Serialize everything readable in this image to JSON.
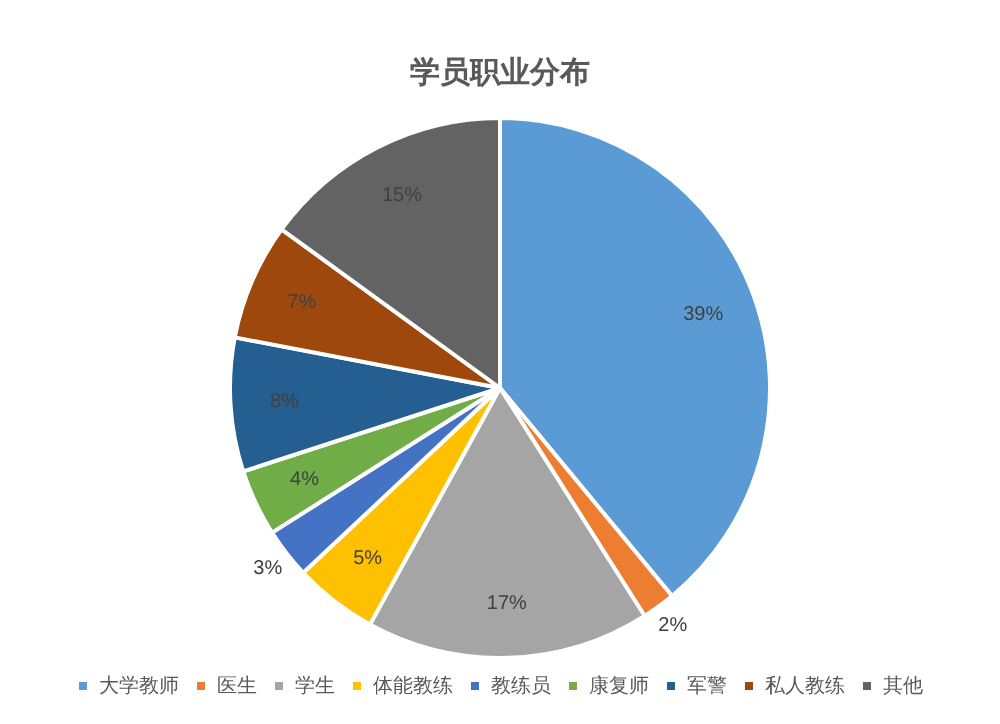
{
  "chart_data": {
    "type": "pie",
    "title": "学员职业分布",
    "categories": [
      "大学教师",
      "医生",
      "学生",
      "体能教练",
      "教练员",
      "康复师",
      "军警",
      "私人教练",
      "其他"
    ],
    "values": [
      39,
      2,
      17,
      5,
      3,
      4,
      8,
      7,
      15
    ],
    "value_labels": [
      "39%",
      "2%",
      "17%",
      "5%",
      "3%",
      "4%",
      "8%",
      "7%",
      "15%"
    ],
    "colors": [
      "#5b9bd5",
      "#ed7d31",
      "#a5a5a5",
      "#ffc000",
      "#4472c4",
      "#70ad47",
      "#255e91",
      "#9e480e",
      "#636363"
    ],
    "legend": "bottom"
  }
}
